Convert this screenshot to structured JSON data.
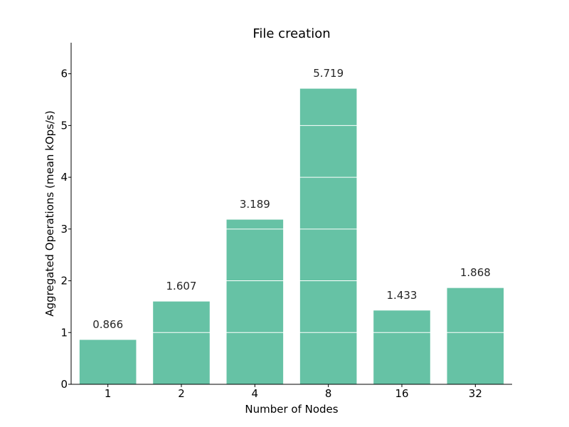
{
  "chart_data": {
    "type": "bar",
    "title": "File creation",
    "xlabel": "Number of Nodes",
    "ylabel": "Aggregated Operations (mean kOps/s)",
    "categories": [
      "1",
      "2",
      "4",
      "8",
      "16",
      "32"
    ],
    "values": [
      0.866,
      1.607,
      3.189,
      5.719,
      1.433,
      1.868
    ],
    "data_labels": [
      "0.866",
      "1.607",
      "3.189",
      "5.719",
      "1.433",
      "1.868"
    ],
    "ylim": [
      0,
      6.6
    ],
    "yticks": [
      "0",
      "1",
      "2",
      "3",
      "4",
      "5",
      "6"
    ],
    "grid": "horizontal white lines drawn over bars",
    "legend": "none",
    "bar_color": "#66c2a5"
  }
}
